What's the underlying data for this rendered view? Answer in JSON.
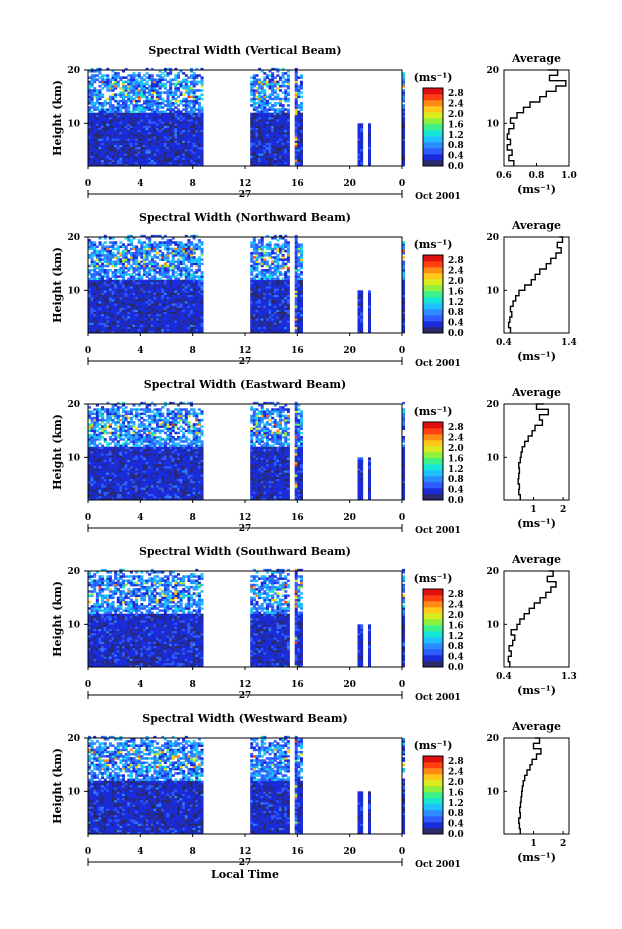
{
  "figure": {
    "xlabel_main": "Local Time",
    "x_ticks": [
      "0",
      "4",
      "8",
      "12",
      "16",
      "20",
      "0"
    ],
    "date_marker": "27",
    "date_text": "Oct 2001",
    "unit_label": "(ms⁻¹)",
    "avg_title": "Average",
    "avg_xlabel": "(ms⁻¹)",
    "ylabel": "Height (km)",
    "y_ticks": [
      "20",
      "10"
    ],
    "colorbar_ticks": [
      "2.8",
      "2.4",
      "2.0",
      "1.6",
      "1.2",
      "0.8",
      "0.4",
      "0.0"
    ],
    "colorbar_colors": [
      "#2a2a6a",
      "#1a2cd8",
      "#2f5cff",
      "#2b8cff",
      "#1fc0ff",
      "#17e6d6",
      "#3cf08a",
      "#8ef040",
      "#d8ec20",
      "#ffc81a",
      "#ff8a14",
      "#ff4010",
      "#e01010"
    ]
  },
  "chart_data": [
    {
      "type": "heatmap",
      "title": "Spectral Width (Vertical Beam)",
      "x_range": [
        0,
        24
      ],
      "y_range": [
        2,
        20
      ],
      "z_range": [
        0,
        3
      ],
      "data_gaps_hours": [
        [
          8.8,
          12.4
        ],
        [
          15.4,
          16.0
        ],
        [
          16.4,
          20.6
        ],
        [
          20.9,
          21.4
        ],
        [
          21.6,
          24
        ]
      ],
      "average": {
        "xlim": [
          0.6,
          1.0
        ],
        "x_ticks": [
          "0.6",
          "0.8",
          "1.0"
        ],
        "height": [
          2,
          3,
          4,
          5,
          6,
          7,
          8,
          9,
          10,
          11,
          12,
          13,
          14,
          15,
          16,
          17,
          18,
          19,
          20
        ],
        "value": [
          0.66,
          0.63,
          0.65,
          0.62,
          0.64,
          0.62,
          0.63,
          0.66,
          0.64,
          0.68,
          0.72,
          0.76,
          0.82,
          0.86,
          0.92,
          0.98,
          0.88,
          0.93,
          0.87
        ]
      }
    },
    {
      "type": "heatmap",
      "title": "Spectral Width (Northward Beam)",
      "x_range": [
        0,
        24
      ],
      "y_range": [
        2,
        20
      ],
      "z_range": [
        0,
        3
      ],
      "data_gaps_hours": [
        [
          8.8,
          12.4
        ],
        [
          15.4,
          16.0
        ],
        [
          16.4,
          20.6
        ],
        [
          20.9,
          21.4
        ],
        [
          21.6,
          24
        ]
      ],
      "average": {
        "xlim": [
          0.4,
          1.4
        ],
        "x_ticks": [
          "0.4",
          "1.4"
        ],
        "height": [
          2,
          3,
          4,
          5,
          6,
          7,
          8,
          9,
          10,
          11,
          12,
          13,
          14,
          15,
          16,
          17,
          18,
          19,
          20
        ],
        "value": [
          0.5,
          0.47,
          0.49,
          0.52,
          0.5,
          0.54,
          0.58,
          0.63,
          0.72,
          0.82,
          0.88,
          0.95,
          1.05,
          1.12,
          1.2,
          1.28,
          1.22,
          1.3,
          1.25
        ]
      }
    },
    {
      "type": "heatmap",
      "title": "Spectral Width (Eastward Beam)",
      "x_range": [
        0,
        24
      ],
      "y_range": [
        2,
        20
      ],
      "z_range": [
        0,
        3
      ],
      "data_gaps_hours": [
        [
          8.8,
          12.4
        ],
        [
          15.4,
          16.0
        ],
        [
          16.4,
          20.6
        ],
        [
          20.9,
          21.4
        ],
        [
          21.6,
          24
        ]
      ],
      "average": {
        "xlim": [
          0,
          2.2
        ],
        "x_ticks": [
          "1",
          "2"
        ],
        "height": [
          2,
          3,
          4,
          5,
          6,
          7,
          8,
          9,
          10,
          11,
          12,
          13,
          14,
          15,
          16,
          17,
          18,
          19,
          20
        ],
        "value": [
          0.55,
          0.5,
          0.52,
          0.48,
          0.5,
          0.52,
          0.5,
          0.55,
          0.58,
          0.62,
          0.7,
          0.82,
          0.95,
          1.05,
          1.3,
          1.2,
          1.5,
          1.1,
          1.35
        ]
      }
    },
    {
      "type": "heatmap",
      "title": "Spectral Width (Southward Beam)",
      "x_range": [
        0,
        24
      ],
      "y_range": [
        2,
        20
      ],
      "z_range": [
        0,
        3
      ],
      "data_gaps_hours": [
        [
          8.8,
          12.4
        ],
        [
          15.4,
          16.0
        ],
        [
          16.4,
          20.6
        ],
        [
          20.9,
          21.4
        ],
        [
          21.6,
          24
        ]
      ],
      "average": {
        "xlim": [
          0.4,
          1.3
        ],
        "x_ticks": [
          "0.4",
          "1.3"
        ],
        "height": [
          2,
          3,
          4,
          5,
          6,
          7,
          8,
          9,
          10,
          11,
          12,
          13,
          14,
          15,
          16,
          17,
          18,
          19,
          20
        ],
        "value": [
          0.48,
          0.46,
          0.5,
          0.47,
          0.52,
          0.55,
          0.5,
          0.58,
          0.62,
          0.68,
          0.75,
          0.82,
          0.9,
          0.98,
          1.05,
          1.12,
          1.0,
          1.08,
          1.02
        ]
      }
    },
    {
      "type": "heatmap",
      "title": "Spectral Width (Westward Beam)",
      "x_range": [
        0,
        24
      ],
      "y_range": [
        2,
        20
      ],
      "z_range": [
        0,
        3
      ],
      "data_gaps_hours": [
        [
          8.8,
          12.4
        ],
        [
          15.4,
          16.0
        ],
        [
          16.4,
          20.6
        ],
        [
          20.9,
          21.4
        ],
        [
          21.6,
          24
        ]
      ],
      "average": {
        "xlim": [
          0,
          2.2
        ],
        "x_ticks": [
          "1",
          "2"
        ],
        "height": [
          2,
          3,
          4,
          5,
          6,
          7,
          8,
          9,
          10,
          11,
          12,
          13,
          14,
          15,
          16,
          17,
          18,
          19,
          20
        ],
        "value": [
          0.55,
          0.52,
          0.5,
          0.55,
          0.53,
          0.56,
          0.58,
          0.6,
          0.62,
          0.65,
          0.7,
          0.78,
          0.88,
          0.95,
          1.1,
          1.25,
          1.0,
          1.2,
          1.05
        ]
      }
    }
  ]
}
